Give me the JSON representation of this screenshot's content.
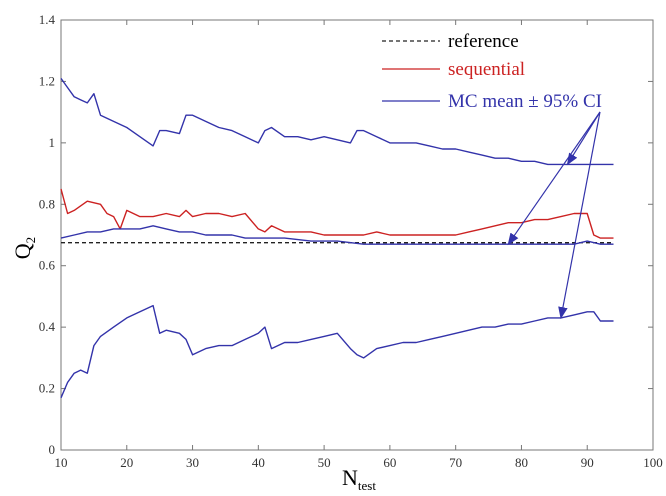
{
  "chart_data": {
    "type": "line",
    "title": "",
    "xlabel": "N",
    "xlabel_sub": "test",
    "ylabel": "Q",
    "ylabel_sub": "2",
    "xlim": [
      10,
      100
    ],
    "ylim": [
      0,
      1.4
    ],
    "xticks": [
      "10",
      "20",
      "30",
      "40",
      "50",
      "60",
      "70",
      "80",
      "90",
      "100"
    ],
    "yticks": [
      "0",
      "0.2",
      "0.4",
      "0.6",
      "0.8",
      "1",
      "1.2",
      "1.4"
    ],
    "grid": false,
    "legend_placement": "top-right",
    "legend": [
      {
        "label": "reference",
        "color": "#222222",
        "style": "dashed"
      },
      {
        "label": "sequential",
        "color": "#cc2222",
        "style": "solid"
      },
      {
        "label": "MC mean ± 95% CI",
        "color": "#3333aa",
        "style": "solid"
      }
    ],
    "series": [
      {
        "name": "reference",
        "color": "#222222",
        "style": "dashed",
        "x": [
          10,
          94
        ],
        "y": [
          0.675,
          0.675
        ]
      },
      {
        "name": "sequential",
        "color": "#cc2222",
        "style": "solid",
        "x": [
          10,
          11,
          12,
          14,
          16,
          17,
          18,
          19,
          20,
          22,
          24,
          26,
          28,
          29,
          30,
          32,
          34,
          36,
          38,
          40,
          41,
          42,
          44,
          46,
          48,
          50,
          52,
          54,
          56,
          58,
          60,
          62,
          64,
          66,
          68,
          70,
          72,
          74,
          76,
          78,
          80,
          82,
          84,
          86,
          88,
          90,
          91,
          92,
          94
        ],
        "y": [
          0.85,
          0.77,
          0.78,
          0.81,
          0.8,
          0.77,
          0.76,
          0.72,
          0.78,
          0.76,
          0.76,
          0.77,
          0.76,
          0.78,
          0.76,
          0.77,
          0.77,
          0.76,
          0.77,
          0.72,
          0.71,
          0.73,
          0.71,
          0.71,
          0.71,
          0.7,
          0.7,
          0.7,
          0.7,
          0.71,
          0.7,
          0.7,
          0.7,
          0.7,
          0.7,
          0.7,
          0.71,
          0.72,
          0.73,
          0.74,
          0.74,
          0.75,
          0.75,
          0.76,
          0.77,
          0.77,
          0.7,
          0.69,
          0.69
        ]
      },
      {
        "name": "MC mean upper 95% CI",
        "color": "#3333aa",
        "style": "solid",
        "x": [
          10,
          11,
          12,
          13,
          14,
          15,
          16,
          18,
          20,
          22,
          24,
          25,
          26,
          28,
          29,
          30,
          32,
          34,
          36,
          38,
          40,
          41,
          42,
          44,
          46,
          48,
          50,
          52,
          54,
          55,
          56,
          58,
          60,
          62,
          64,
          66,
          68,
          70,
          72,
          74,
          76,
          78,
          80,
          82,
          84,
          86,
          88,
          90,
          92,
          94
        ],
        "y": [
          1.21,
          1.18,
          1.15,
          1.14,
          1.13,
          1.16,
          1.09,
          1.07,
          1.05,
          1.02,
          0.99,
          1.04,
          1.04,
          1.03,
          1.09,
          1.09,
          1.07,
          1.05,
          1.04,
          1.02,
          1.0,
          1.04,
          1.05,
          1.02,
          1.02,
          1.01,
          1.02,
          1.01,
          1.0,
          1.04,
          1.04,
          1.02,
          1.0,
          1.0,
          1.0,
          0.99,
          0.98,
          0.98,
          0.97,
          0.96,
          0.95,
          0.95,
          0.94,
          0.94,
          0.93,
          0.93,
          0.93,
          0.93,
          0.93,
          0.93
        ]
      },
      {
        "name": "MC mean",
        "color": "#3333aa",
        "style": "solid",
        "x": [
          10,
          12,
          14,
          16,
          18,
          20,
          22,
          24,
          26,
          28,
          30,
          32,
          34,
          36,
          38,
          40,
          44,
          48,
          52,
          56,
          60,
          64,
          68,
          72,
          76,
          80,
          84,
          88,
          90,
          92,
          94
        ],
        "y": [
          0.69,
          0.7,
          0.71,
          0.71,
          0.72,
          0.72,
          0.72,
          0.73,
          0.72,
          0.71,
          0.71,
          0.7,
          0.7,
          0.7,
          0.69,
          0.69,
          0.69,
          0.68,
          0.68,
          0.67,
          0.67,
          0.67,
          0.67,
          0.67,
          0.67,
          0.67,
          0.67,
          0.67,
          0.68,
          0.67,
          0.67
        ]
      },
      {
        "name": "MC mean lower 95% CI",
        "color": "#3333aa",
        "style": "solid",
        "x": [
          10,
          11,
          12,
          13,
          14,
          15,
          16,
          18,
          20,
          22,
          24,
          25,
          26,
          28,
          29,
          30,
          32,
          34,
          36,
          38,
          40,
          41,
          42,
          44,
          46,
          48,
          50,
          52,
          54,
          55,
          56,
          58,
          60,
          62,
          64,
          66,
          68,
          70,
          72,
          74,
          76,
          78,
          80,
          82,
          84,
          86,
          88,
          90,
          91,
          92,
          94
        ],
        "y": [
          0.17,
          0.22,
          0.25,
          0.26,
          0.25,
          0.34,
          0.37,
          0.4,
          0.43,
          0.45,
          0.47,
          0.38,
          0.39,
          0.38,
          0.36,
          0.31,
          0.33,
          0.34,
          0.34,
          0.36,
          0.38,
          0.4,
          0.33,
          0.35,
          0.35,
          0.36,
          0.37,
          0.38,
          0.33,
          0.31,
          0.3,
          0.33,
          0.34,
          0.35,
          0.35,
          0.36,
          0.37,
          0.38,
          0.39,
          0.4,
          0.4,
          0.41,
          0.41,
          0.42,
          0.43,
          0.43,
          0.44,
          0.45,
          0.45,
          0.42,
          0.42
        ]
      }
    ],
    "annotation_arrows": [
      {
        "target_x": 87,
        "target_y": 0.93
      },
      {
        "target_x": 78,
        "target_y": 0.67
      },
      {
        "target_x": 86,
        "target_y": 0.43
      }
    ]
  }
}
